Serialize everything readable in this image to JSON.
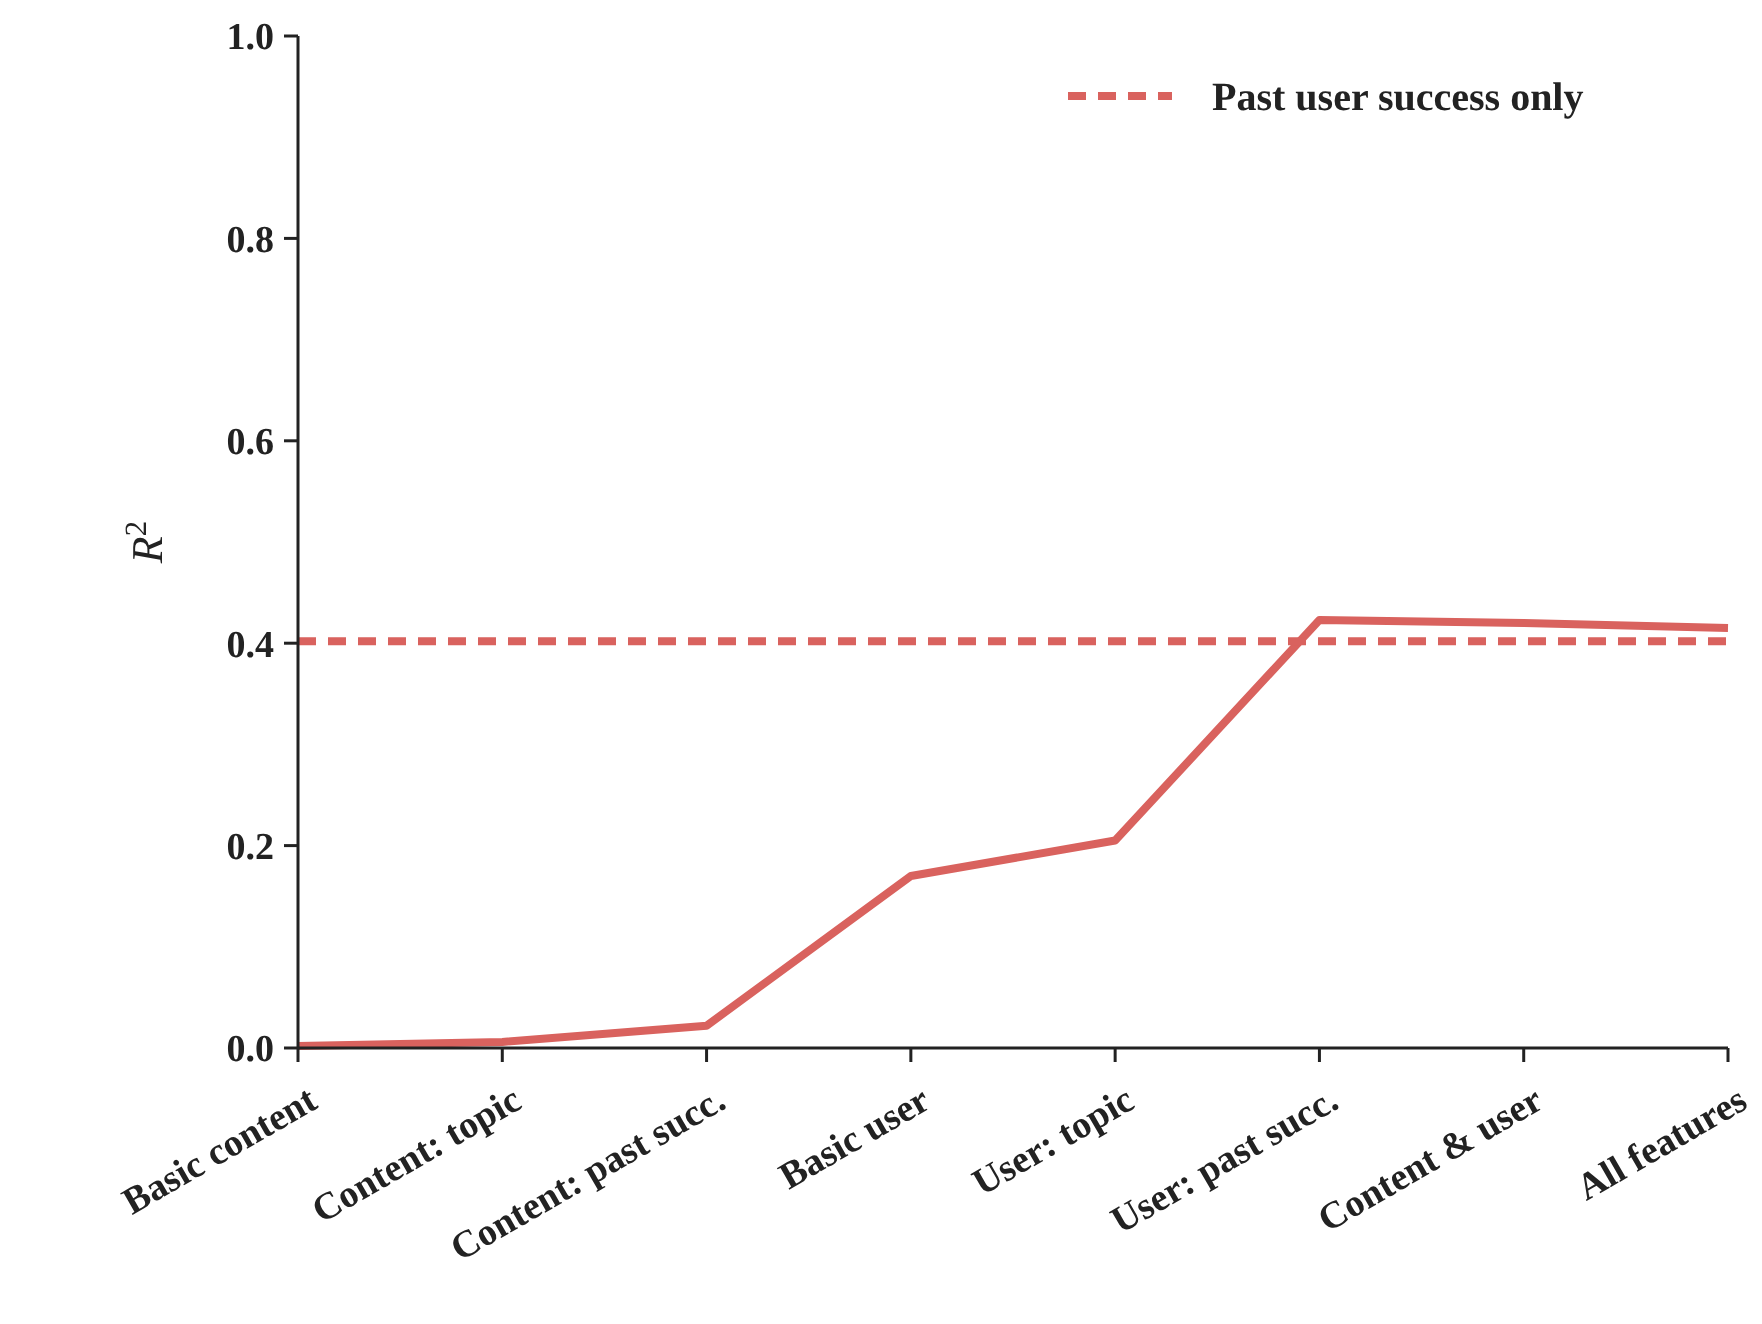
{
  "chart_data": {
    "type": "line",
    "ylabel": "R$^{2}$",
    "categories": [
      "Basic content",
      "Content: topic",
      "Content: past succ.",
      "Basic user",
      "User: topic",
      "User: past succ.",
      "Content & user",
      "All features"
    ],
    "series": [
      {
        "color": "#d9625e",
        "line_style": "solid",
        "values": [
          0.002,
          0.006,
          0.022,
          0.17,
          0.205,
          0.423,
          0.42,
          0.415
        ]
      },
      {
        "name": "Past user success only",
        "color": "#d9625e",
        "line_style": "dashed",
        "values": [
          0.402,
          0.402,
          0.402,
          0.402,
          0.402,
          0.402,
          0.402,
          0.402
        ]
      }
    ],
    "ylim": [
      0,
      1
    ],
    "yticks": [
      {
        "value": 0,
        "label": "0.0"
      },
      {
        "value": 0.2,
        "label": "0.2"
      },
      {
        "value": 0.4,
        "label": "0.4"
      },
      {
        "value": 0.6,
        "label": "0.6"
      },
      {
        "value": 0.8,
        "label": "0.8"
      },
      {
        "value": 1,
        "label": "1.0"
      }
    ],
    "grid": false,
    "legend": "top right"
  }
}
